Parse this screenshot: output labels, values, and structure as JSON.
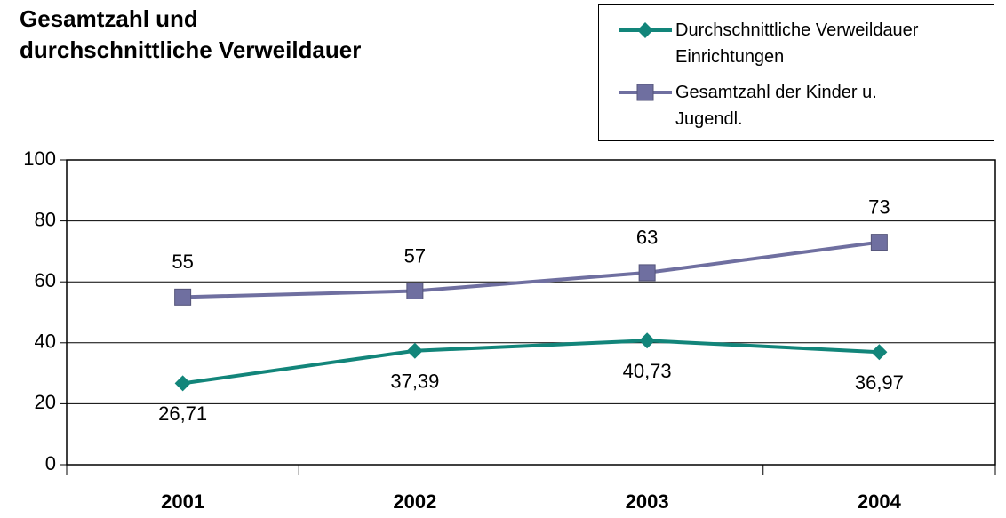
{
  "chart_data": {
    "type": "line",
    "title": "Gesamtzahl und\ndurchschnittliche Verweildauer",
    "categories": [
      "2001",
      "2002",
      "2003",
      "2004"
    ],
    "series": [
      {
        "name": "Durchschnittliche Verweildauer\nEinrichtungen",
        "color": "#12857a",
        "marker": "diamond",
        "values": [
          26.71,
          37.39,
          40.73,
          36.97
        ],
        "value_labels": [
          "26,71",
          "37,39",
          "40,73",
          "36,97"
        ]
      },
      {
        "name": "Gesamtzahl der Kinder u.\nJugendl.",
        "color": "#6f6fa0",
        "marker": "square",
        "values": [
          55,
          57,
          63,
          73
        ]
      }
    ],
    "ylim": [
      0,
      100
    ],
    "yticks": [
      0,
      20,
      40,
      60,
      80,
      100
    ],
    "grid": true,
    "legend": "top-right"
  }
}
